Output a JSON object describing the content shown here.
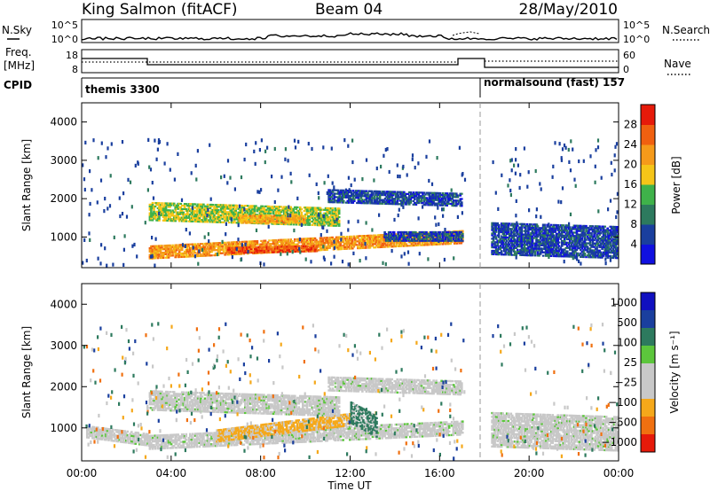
{
  "header": {
    "station": "King Salmon (fitACF)",
    "beam": "Beam 04",
    "date": "28/May/2010"
  },
  "noise_panel": {
    "left_label": "N.Sky",
    "right_label": "N.Search",
    "left_ticks": [
      "10^5",
      "10^0"
    ],
    "right_ticks": [
      "10^5",
      "10^0"
    ]
  },
  "freq_panel": {
    "left_label_line1": "Freq.",
    "left_label_line2": "[MHz]",
    "right_label": "Nave",
    "left_ticks": [
      "18",
      "8"
    ],
    "right_ticks": [
      "60",
      "0"
    ]
  },
  "cpid_panel": {
    "label": "CPID",
    "segments": [
      {
        "name": "themis 3300",
        "start_hour": 0,
        "end_hour": 18.0
      },
      {
        "name": "normalsound (fast) 157",
        "start_hour": 18.0,
        "end_hour": 24
      }
    ]
  },
  "x_axis": {
    "label": "Time UT",
    "ticks": [
      "00:00",
      "04:00",
      "08:00",
      "12:00",
      "16:00",
      "20:00",
      "00:00"
    ]
  },
  "colors": {
    "power_scale": [
      "#1010e0",
      "#1a3f9e",
      "#2d7a5e",
      "#3fb24a",
      "#f5c518",
      "#f59a1a",
      "#f06010",
      "#e61a0a"
    ],
    "velocity_scale": [
      "#1010c0",
      "#1a3f9e",
      "#2d7a5e",
      "#5cc63c",
      "#c8c8c8",
      "#c8c8c8",
      "#f5a81a",
      "#f07010",
      "#e61a0a"
    ]
  },
  "chart_data": [
    {
      "type": "heatmap",
      "name": "power",
      "ylabel": "Slant Range [km]",
      "xlabel": "Time UT",
      "xlim": [
        0,
        24
      ],
      "ylim": [
        200,
        4500
      ],
      "yticks": [
        "1000",
        "2000",
        "3000",
        "4000"
      ],
      "colorbar_label": "Power [dB]",
      "colorbar_ticks": [
        "4",
        "8",
        "12",
        "16",
        "20",
        "24",
        "28"
      ],
      "colorbar_range": [
        0,
        30
      ],
      "bands": [
        {
          "t_start": 3.0,
          "t_end": 17.0,
          "r_center_start": 600,
          "r_center_end": 1000,
          "half_width": 180,
          "value": 22
        },
        {
          "t_start": 6.5,
          "t_end": 10.5,
          "r_center_start": 650,
          "r_center_end": 700,
          "half_width": 90,
          "value": 27
        },
        {
          "t_start": 3.0,
          "t_end": 11.5,
          "r_center_start": 1650,
          "r_center_end": 1500,
          "half_width": 230,
          "value": 16
        },
        {
          "t_start": 7.0,
          "t_end": 10.0,
          "r_center_start": 1450,
          "r_center_end": 1450,
          "half_width": 100,
          "value": 21
        },
        {
          "t_start": 11.0,
          "t_end": 17.0,
          "r_center_start": 2050,
          "r_center_end": 1950,
          "half_width": 160,
          "value": 6
        },
        {
          "t_start": 13.5,
          "t_end": 17.0,
          "r_center_start": 1000,
          "r_center_end": 1000,
          "half_width": 120,
          "value": 6
        },
        {
          "t_start": 18.3,
          "t_end": 24.0,
          "r_center_start": 950,
          "r_center_end": 850,
          "half_width": 420,
          "value": 6
        }
      ]
    },
    {
      "type": "heatmap",
      "name": "velocity",
      "ylabel": "Slant Range [km]",
      "xlabel": "Time UT",
      "xlim": [
        0,
        24
      ],
      "ylim": [
        200,
        4500
      ],
      "yticks": [
        "1000",
        "2000",
        "3000",
        "4000"
      ],
      "colorbar_label": "Velocity [m s⁻¹]",
      "colorbar_ticks": [
        "1000",
        "500",
        "100",
        "25",
        "−25",
        "−100",
        "−500",
        "−1000"
      ],
      "colorbar_range": [
        -1200,
        1200
      ],
      "bands": [
        {
          "t_start": 3.0,
          "t_end": 17.0,
          "r_center_start": 650,
          "r_center_end": 1000,
          "half_width": 180,
          "value": 0
        },
        {
          "t_start": 6.0,
          "t_end": 12.0,
          "r_center_start": 800,
          "r_center_end": 1200,
          "half_width": 150,
          "value": -150
        },
        {
          "t_start": 3.0,
          "t_end": 11.5,
          "r_center_start": 1650,
          "r_center_end": 1500,
          "half_width": 230,
          "value": 0
        },
        {
          "t_start": 11.0,
          "t_end": 17.0,
          "r_center_start": 2050,
          "r_center_end": 1950,
          "half_width": 160,
          "value": 0
        },
        {
          "t_start": 12.0,
          "t_end": 13.2,
          "r_center_start": 1350,
          "r_center_end": 1000,
          "half_width": 250,
          "value": 300
        },
        {
          "t_start": 0.2,
          "t_end": 3.0,
          "r_center_start": 900,
          "r_center_end": 700,
          "half_width": 150,
          "value": 0
        },
        {
          "t_start": 18.3,
          "t_end": 24.0,
          "r_center_start": 950,
          "r_center_end": 850,
          "half_width": 420,
          "value": 0
        }
      ]
    }
  ]
}
